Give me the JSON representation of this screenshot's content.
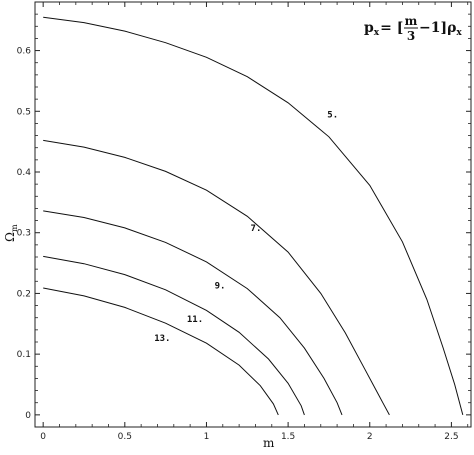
{
  "chart_data": {
    "type": "line",
    "title": "",
    "xlabel": "m",
    "ylabel_main": "Ω",
    "ylabel_sub": "m",
    "xlim": [
      -0.05,
      2.62
    ],
    "ylim": [
      -0.02,
      0.68
    ],
    "xticks": [
      0,
      0.5,
      1,
      1.5,
      2,
      2.5
    ],
    "xtick_labels": [
      "0",
      "0.5",
      "1",
      "1.5",
      "2",
      "2.5"
    ],
    "yticks": [
      0,
      0.1,
      0.2,
      0.3,
      0.4,
      0.5,
      0.6
    ],
    "ytick_labels": [
      "0",
      "0.1",
      "0.2",
      "0.3",
      "0.4",
      "0.5",
      "0.6"
    ],
    "annotation": {
      "lhs": "p",
      "lhs_sub": "x",
      "eq": "= [",
      "frac_num": "m",
      "frac_den": "3",
      "tail": "−1]ρ",
      "tail_sub": "x"
    },
    "grid": false,
    "series": [
      {
        "label": "5.",
        "label_at": [
          1.74,
          0.49
        ],
        "points": [
          [
            0,
            0.655
          ],
          [
            0.25,
            0.646
          ],
          [
            0.5,
            0.632
          ],
          [
            0.75,
            0.613
          ],
          [
            1.0,
            0.589
          ],
          [
            1.25,
            0.557
          ],
          [
            1.5,
            0.514
          ],
          [
            1.75,
            0.458
          ],
          [
            2.0,
            0.378
          ],
          [
            2.2,
            0.285
          ],
          [
            2.35,
            0.19
          ],
          [
            2.45,
            0.11
          ],
          [
            2.52,
            0.05
          ],
          [
            2.57,
            0.0
          ]
        ]
      },
      {
        "label": "7.",
        "label_at": [
          1.27,
          0.303
        ],
        "points": [
          [
            0,
            0.452
          ],
          [
            0.25,
            0.441
          ],
          [
            0.5,
            0.424
          ],
          [
            0.75,
            0.401
          ],
          [
            1.0,
            0.37
          ],
          [
            1.25,
            0.327
          ],
          [
            1.5,
            0.268
          ],
          [
            1.7,
            0.2
          ],
          [
            1.85,
            0.135
          ],
          [
            1.97,
            0.075
          ],
          [
            2.08,
            0.02
          ],
          [
            2.12,
            0.0
          ]
        ]
      },
      {
        "label": "9.",
        "label_at": [
          1.05,
          0.208
        ],
        "points": [
          [
            0,
            0.336
          ],
          [
            0.25,
            0.325
          ],
          [
            0.5,
            0.308
          ],
          [
            0.75,
            0.284
          ],
          [
            1.0,
            0.252
          ],
          [
            1.25,
            0.208
          ],
          [
            1.45,
            0.16
          ],
          [
            1.6,
            0.11
          ],
          [
            1.72,
            0.06
          ],
          [
            1.8,
            0.02
          ],
          [
            1.83,
            0.0
          ]
        ]
      },
      {
        "label": "11.",
        "label_at": [
          0.88,
          0.153
        ],
        "points": [
          [
            0,
            0.261
          ],
          [
            0.25,
            0.249
          ],
          [
            0.5,
            0.231
          ],
          [
            0.75,
            0.206
          ],
          [
            1.0,
            0.172
          ],
          [
            1.2,
            0.136
          ],
          [
            1.38,
            0.092
          ],
          [
            1.5,
            0.052
          ],
          [
            1.58,
            0.015
          ],
          [
            1.6,
            0.0
          ]
        ]
      },
      {
        "label": "13.",
        "label_at": [
          0.68,
          0.122
        ],
        "points": [
          [
            0,
            0.209
          ],
          [
            0.25,
            0.196
          ],
          [
            0.5,
            0.177
          ],
          [
            0.75,
            0.151
          ],
          [
            1.0,
            0.118
          ],
          [
            1.2,
            0.082
          ],
          [
            1.33,
            0.048
          ],
          [
            1.41,
            0.018
          ],
          [
            1.44,
            0.0
          ]
        ]
      }
    ]
  }
}
